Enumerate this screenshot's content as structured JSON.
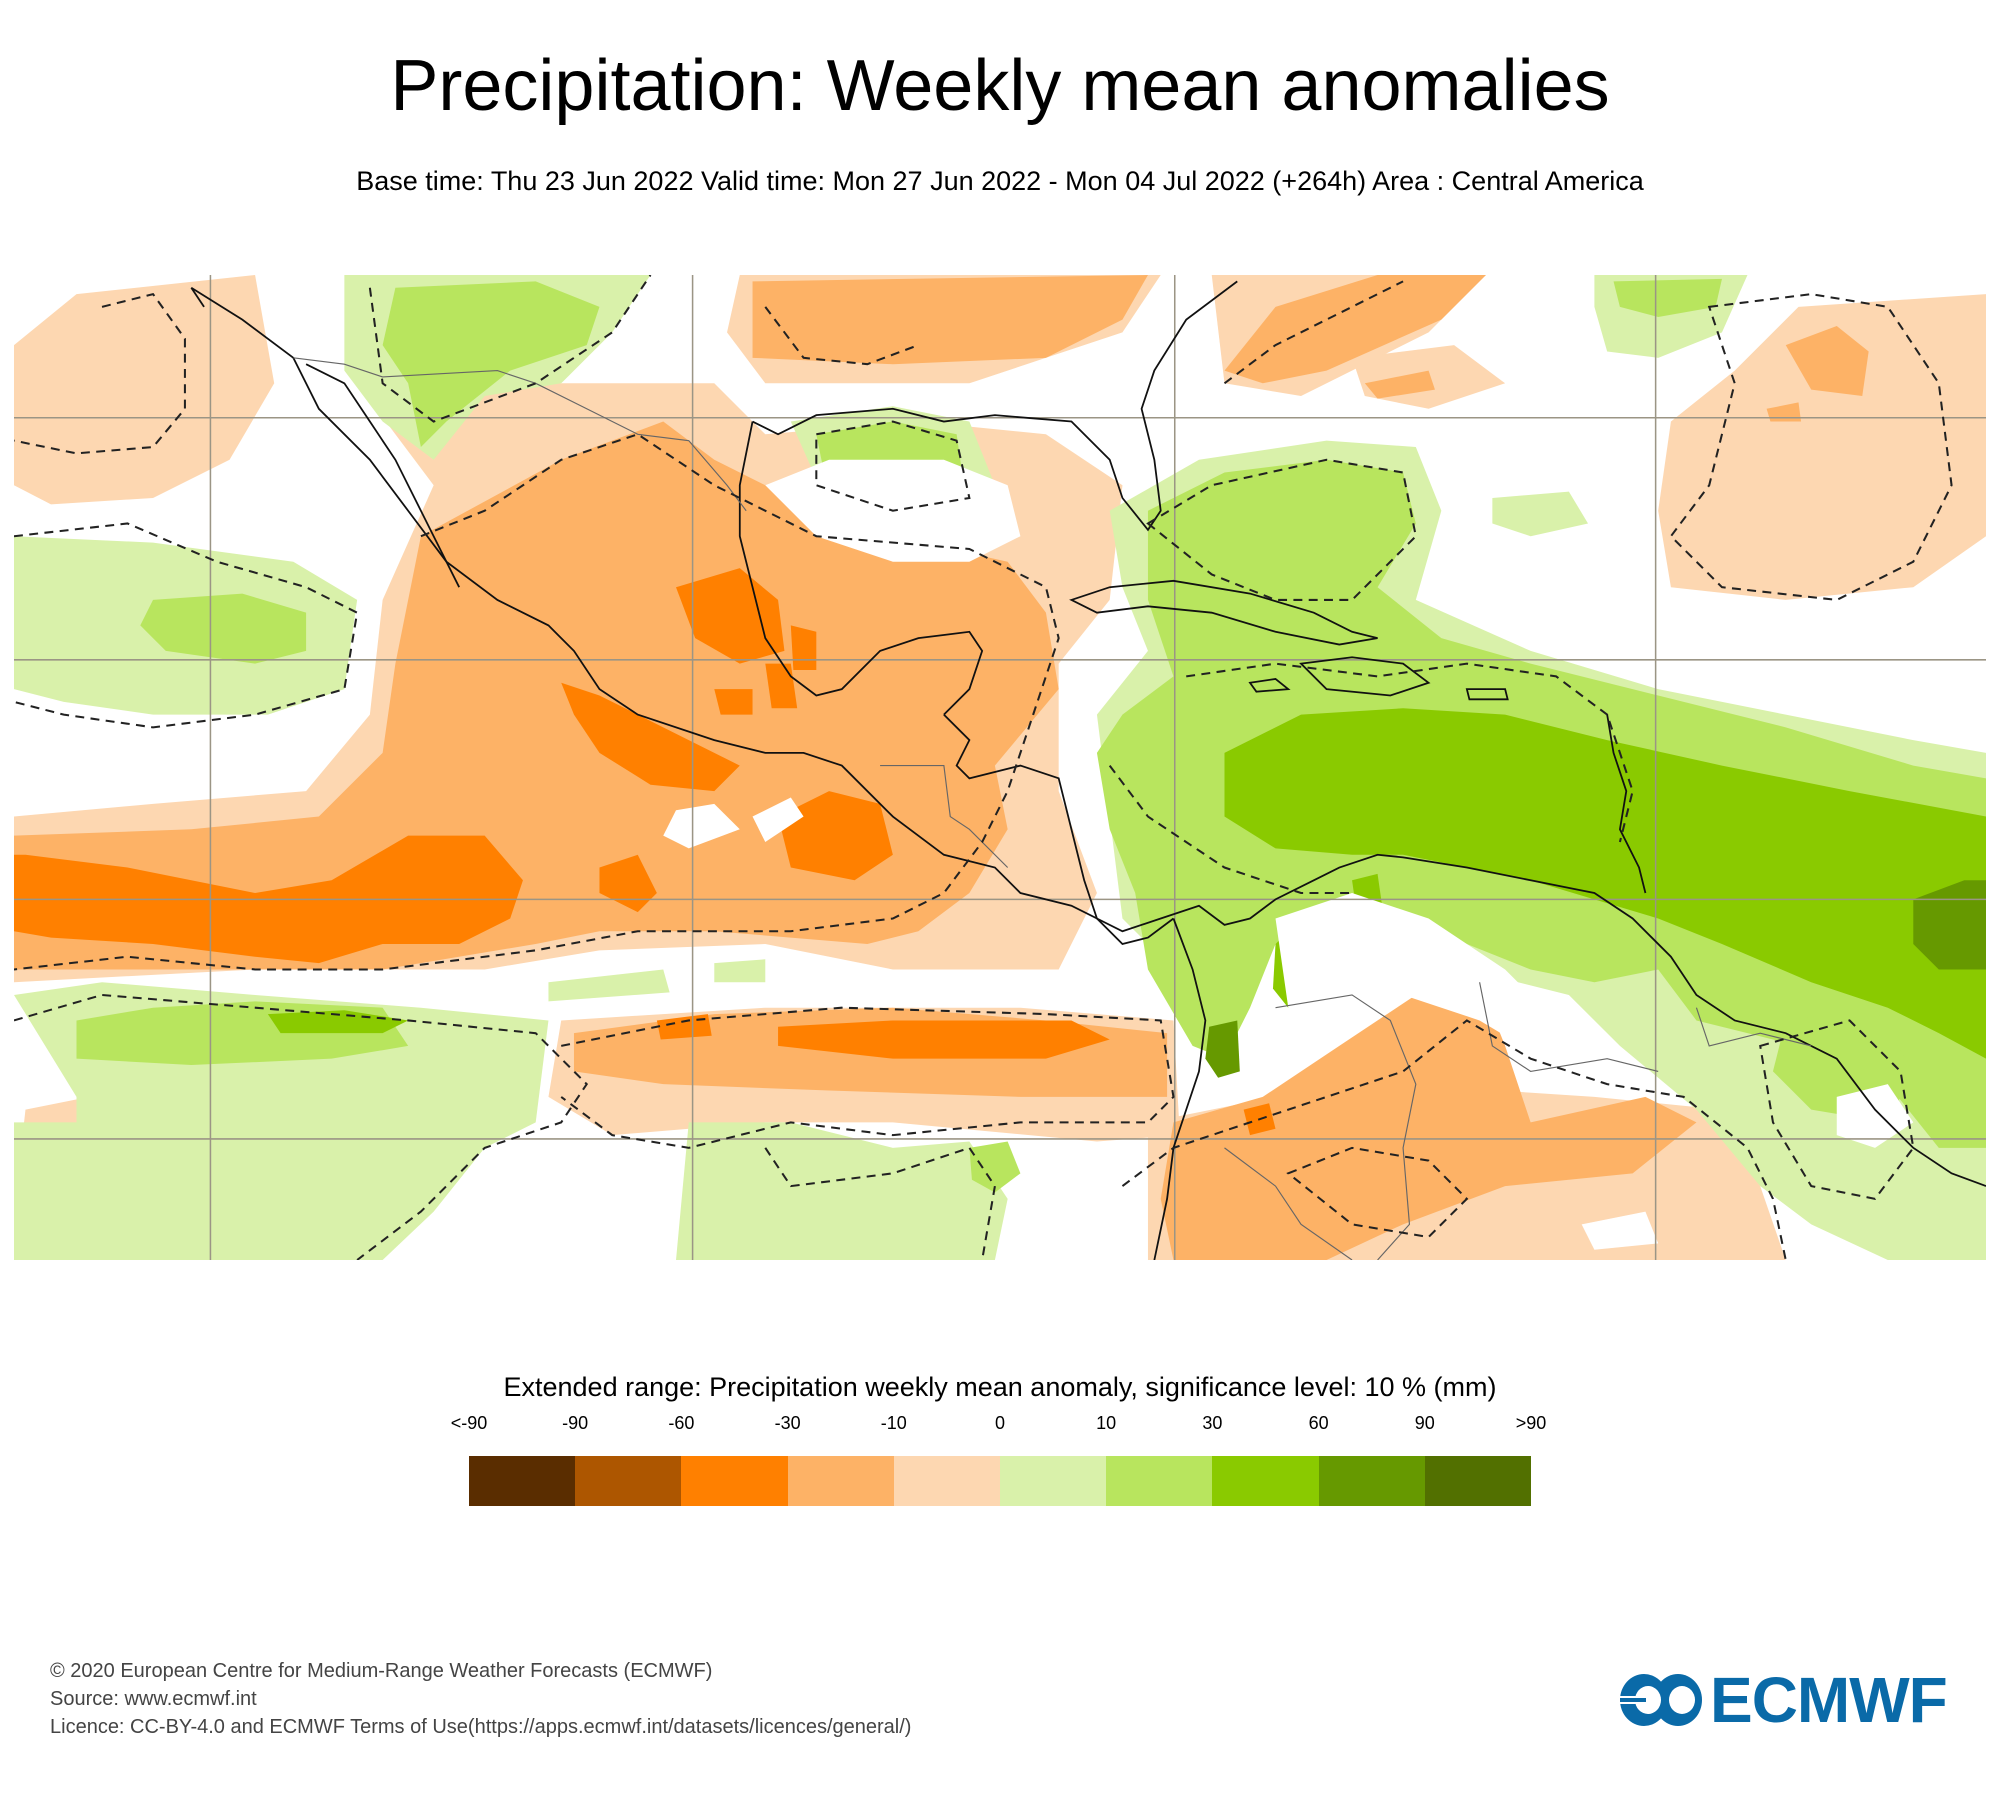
{
  "header": {
    "title": "Precipitation: Weekly mean anomalies",
    "subtitle": "Base time: Thu 23 Jun 2022 Valid time: Mon 27 Jun 2022 - Mon 04 Jul 2022 (+264h) Area : Central America"
  },
  "map": {
    "area": "Central America",
    "base_time": "Thu 23 Jun 2022",
    "valid_time": "Mon 27 Jun 2022 - Mon 04 Jul 2022",
    "lead_time": "+264h",
    "significance_contour": "dashed line = 10 % significance level",
    "colors": {
      "lt_m90": "#5a2d00",
      "m90_m60": "#ad5600",
      "m60_m30": "#ff8000",
      "m30_m10": "#fdb266",
      "m10_0": "#fdd7b1",
      "0_10": "#d9f1aa",
      "10_30": "#b8e55e",
      "30_60": "#8aca00",
      "60_90": "#669900",
      "gt_90": "#527000",
      "coastline": "#111111",
      "border": "#555555",
      "gridline": "#9b9585"
    }
  },
  "legend": {
    "title": "Extended range: Precipitation weekly mean anomaly, significance level: 10 % (mm)",
    "ticks": [
      "<-90",
      "-90",
      "-60",
      "-30",
      "-10",
      "0",
      "10",
      "30",
      "60",
      "90",
      ">90"
    ],
    "colors": [
      "#5a2d00",
      "#ad5600",
      "#ff8000",
      "#fdb266",
      "#fdd7b1",
      "#d9f1aa",
      "#b8e55e",
      "#8aca00",
      "#669900",
      "#527000"
    ]
  },
  "footer": {
    "copyright": "© 2020 European Centre for Medium-Range Weather Forecasts (ECMWF)",
    "source": "Source: www.ecmwf.int",
    "licence": "Licence: CC-BY-4.0 and ECMWF Terms of Use(https://apps.ecmwf.int/datasets/licences/general/)"
  },
  "logo": {
    "text": "ECMWF",
    "color": "#0a6aa8"
  }
}
